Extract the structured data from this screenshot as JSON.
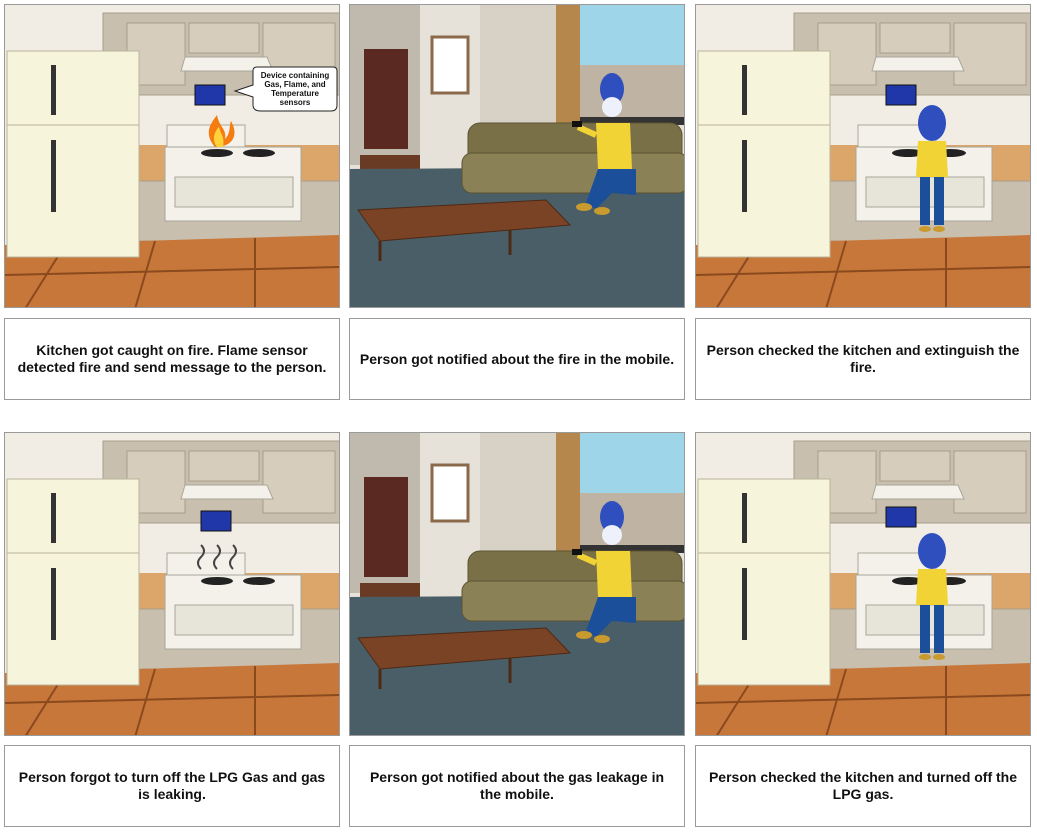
{
  "panels": [
    {
      "scene": "kitchen",
      "caption": "Kitchen got caught on fire. Flame sensor detected fire and send message to the person.",
      "bubble": [
        "Device containing",
        "Gas, Flame, and",
        "Temperature",
        "sensors"
      ]
    },
    {
      "scene": "living-room",
      "caption": "Person got notified about the fire in the mobile."
    },
    {
      "scene": "kitchen",
      "caption": "Person checked the kitchen and extinguish the fire."
    },
    {
      "scene": "kitchen",
      "caption": "Person forgot to turn off the LPG Gas and gas is leaking."
    },
    {
      "scene": "living-room",
      "caption": "Person got notified about the gas leakage in the mobile."
    },
    {
      "scene": "kitchen",
      "caption": "Person checked the kitchen and turned off the LPG gas."
    }
  ],
  "colors": {
    "wall": "#f1ede4",
    "cabinet": "#c9bfae",
    "fridge": "#f7f4dc",
    "floor": "#c8773a",
    "sofa": "#7a7048",
    "rug": "#4a5e68",
    "shirt": "#f2d335",
    "jeans": "#1b4f9a",
    "hair": "#2f4fbf"
  }
}
